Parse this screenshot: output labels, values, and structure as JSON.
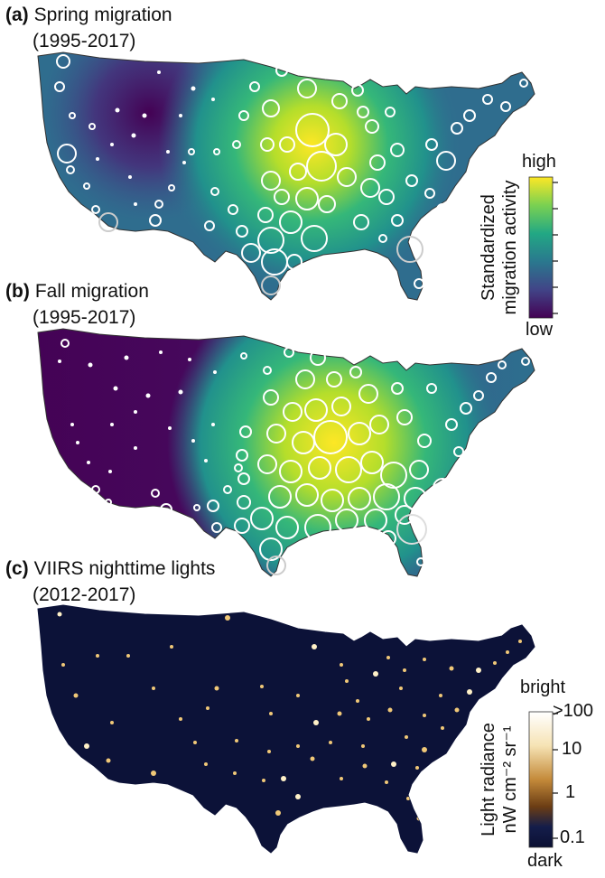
{
  "panels": {
    "a": {
      "letter": "(a)",
      "title": "Spring migration",
      "years": "(1995-2017)"
    },
    "b": {
      "letter": "(b)",
      "title": "Fall migration",
      "years": "(1995-2017)"
    },
    "c": {
      "letter": "(c)",
      "title": "VIIRS nighttime lights",
      "years": "(2012-2017)"
    }
  },
  "legend_migration": {
    "top": "high",
    "bottom": "low",
    "title_line1": "Standardized",
    "title_line2": "migration activity",
    "colors": [
      "#fde725",
      "#7ad151",
      "#22a884",
      "#2a788e",
      "#414487",
      "#440154"
    ]
  },
  "legend_lights": {
    "top": "bright",
    "bottom": "dark",
    "title_line1": "Light radiance",
    "title_line2": "nW cm⁻² sr⁻¹",
    "ticks": [
      ">100",
      "10",
      "1",
      "0.1"
    ],
    "colors": [
      "#ffffff",
      "#f6e3b4",
      "#c48a3a",
      "#6b3d14",
      "#141d4a",
      "#0b1033"
    ]
  }
}
